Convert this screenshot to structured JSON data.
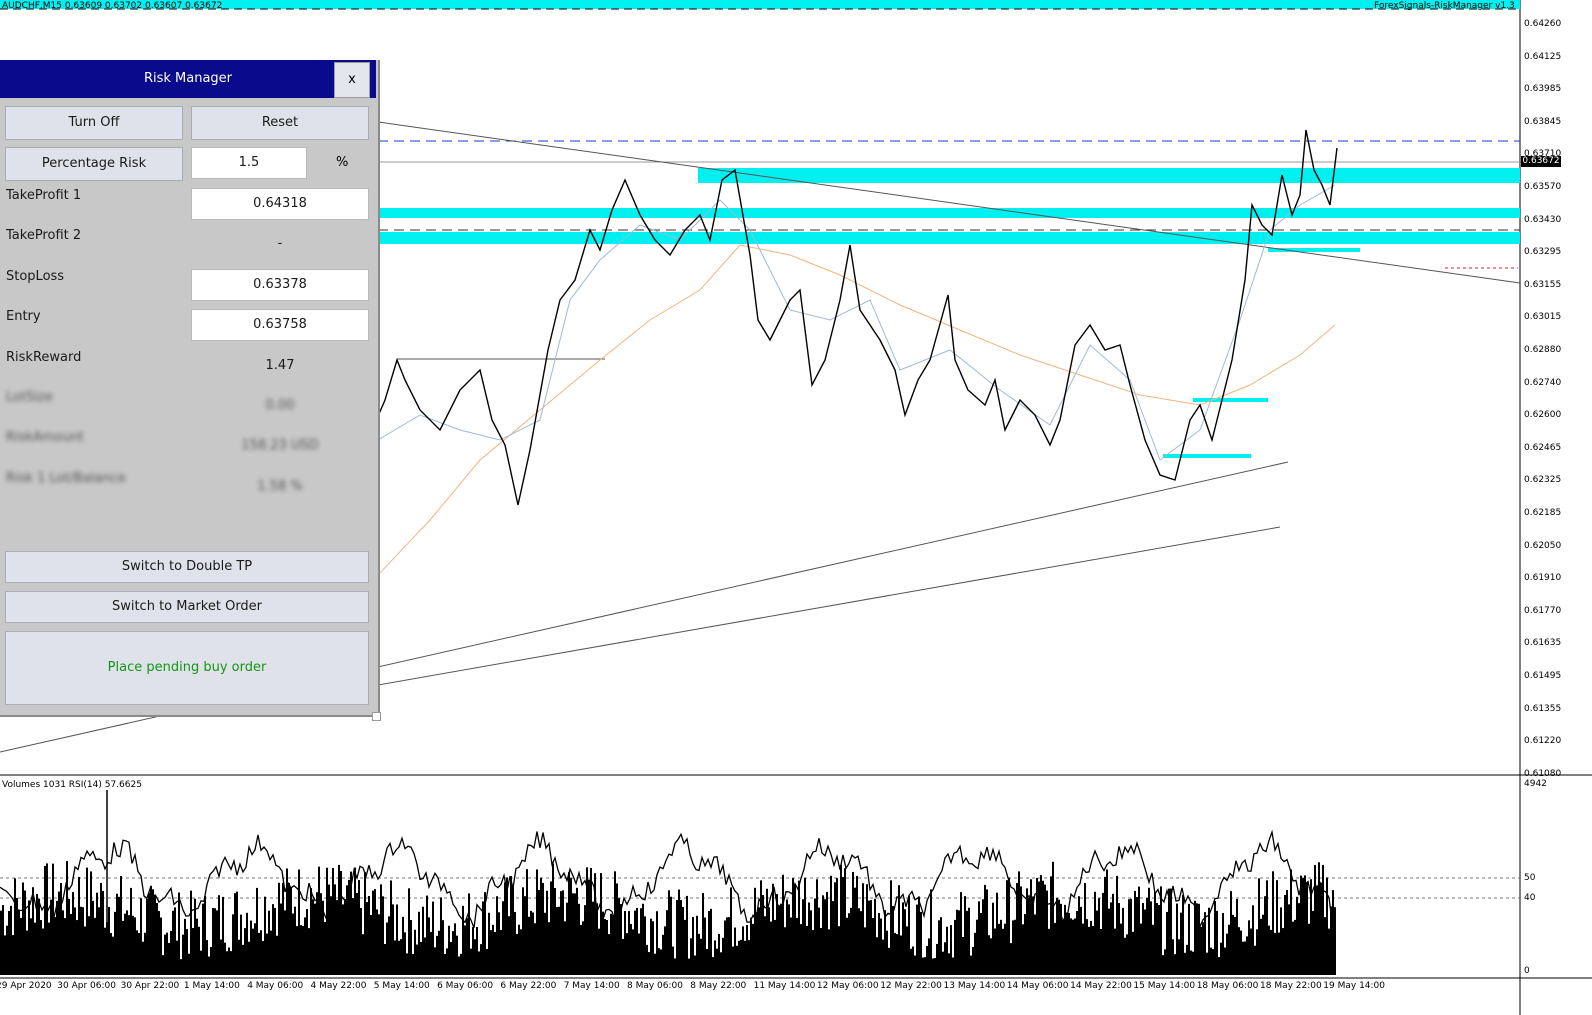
{
  "header": {
    "symbol_info": "AUDCHF,M15  0.63609 0.63702 0.63607 0.63672",
    "ea_name": "ForexSignals-RiskManager v1.3"
  },
  "price_axis": [
    "0.64260",
    "0.64125",
    "0.63985",
    "0.63845",
    "0.63710",
    "0.63570",
    "0.63430",
    "0.63295",
    "0.63155",
    "0.63015",
    "0.62880",
    "0.62740",
    "0.62600",
    "0.62465",
    "0.62325",
    "0.62185",
    "0.62050",
    "0.61910",
    "0.61770",
    "0.61635",
    "0.61495",
    "0.61355",
    "0.61220",
    "0.61080"
  ],
  "current_price": "0.63672",
  "time_axis": [
    "29 Apr 2020",
    "30 Apr 06:00",
    "30 Apr 22:00",
    "1 May 14:00",
    "4 May 06:00",
    "4 May 22:00",
    "5 May 14:00",
    "6 May 06:00",
    "6 May 22:00",
    "7 May 14:00",
    "8 May 06:00",
    "8 May 22:00",
    "11 May 14:00",
    "12 May 06:00",
    "12 May 22:00",
    "13 May 14:00",
    "14 May 06:00",
    "14 May 22:00",
    "15 May 14:00",
    "18 May 06:00",
    "18 May 22:00",
    "19 May 14:00"
  ],
  "indicator": {
    "title": "Volumes 1031  RSI(14) 57.6625",
    "axis": [
      "4942",
      "50",
      "40",
      "0"
    ]
  },
  "risk_manager": {
    "title": "Risk Manager",
    "close_label": "x",
    "turn_off_label": "Turn Off",
    "reset_label": "Reset",
    "percentage_risk_label": "Percentage Risk",
    "percentage_risk_value": "1.5",
    "percent_symbol": "%",
    "tp1_label": "TakeProfit 1",
    "tp1_value": "0.64318",
    "tp2_label": "TakeProfit 2",
    "tp2_value": "-",
    "sl_label": "StopLoss",
    "sl_value": "0.63378",
    "entry_label": "Entry",
    "entry_value": "0.63758",
    "rr_label": "RiskReward",
    "rr_value": "1.47",
    "blur1_label": "LotSize",
    "blur1_value": "0.00",
    "blur2_label": "RiskAmount",
    "blur2_value": "158.23 USD",
    "blur3_label": "Risk 1 Lot/Balance",
    "blur3_value": "1.58 %",
    "double_tp_label": "Switch to Double TP",
    "market_order_label": "Switch to Market Order",
    "status_text": "Place pending buy order"
  },
  "colors": {
    "zone": "#00f0f0",
    "panel_title_bg": "#0a0a8c",
    "status_text": "#129812",
    "ma_fast": "#9fb9d8",
    "ma_slow": "#f2b47e"
  }
}
